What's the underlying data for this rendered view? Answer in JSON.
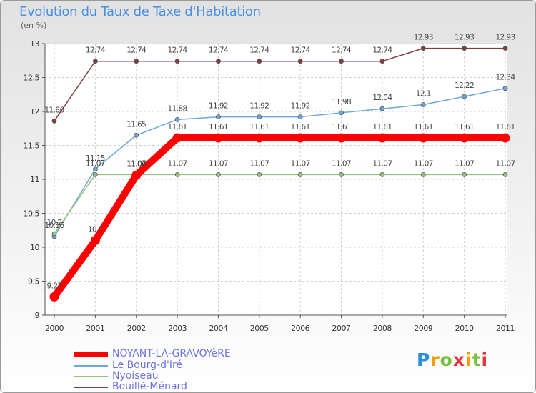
{
  "header": {
    "title": "Evolution du Taux de Taxe d'Habitation",
    "subtitle": "(en %)"
  },
  "logo": {
    "text": "Proxiti",
    "colors": [
      "#2a8fd6",
      "#f2a000",
      "#7ac043",
      "#e8343c"
    ]
  },
  "chart_data": {
    "type": "line",
    "title": "Evolution du Taux de Taxe d'Habitation",
    "ylabel": "(en %)",
    "xlabel": "",
    "x": [
      "2000",
      "2001",
      "2002",
      "2003",
      "2004",
      "2005",
      "2006",
      "2007",
      "2008",
      "2009",
      "2010",
      "2011"
    ],
    "ylim": [
      9,
      13
    ],
    "yticks": [
      "9",
      "9.5",
      "10",
      "10.5",
      "11",
      "11.5",
      "12",
      "12.5",
      "13"
    ],
    "grid": true,
    "legend_position": "bottom-left",
    "series": [
      {
        "name": "NOYANT-LA-GRAVOYèRE",
        "color": "#ff0000",
        "emphasis": true,
        "values": [
          9.27,
          10.1,
          11.06,
          11.61,
          11.61,
          11.61,
          11.61,
          11.61,
          11.61,
          11.61,
          11.61,
          11.61
        ],
        "labels": [
          "9.27",
          "10.1",
          "11.06",
          "11.61",
          "11.61",
          "11.61",
          "11.61",
          "11.61",
          "11.61",
          "11.61",
          "11.61",
          "11.61"
        ]
      },
      {
        "name": "Le Bourg-d'Iré",
        "color": "#6fa8dc",
        "values": [
          10.16,
          11.15,
          11.65,
          11.88,
          11.92,
          11.92,
          11.92,
          11.98,
          12.04,
          12.1,
          12.22,
          12.34
        ],
        "labels": [
          "10.16",
          "11.15",
          "11.65",
          "11.88",
          "11.92",
          "11.92",
          "11.92",
          "11.98",
          "12.04",
          "12.1",
          "12.22",
          "12.34"
        ]
      },
      {
        "name": "Nyoiseau",
        "color": "#93c47d",
        "values": [
          10.2,
          11.07,
          11.07,
          11.07,
          11.07,
          11.07,
          11.07,
          11.07,
          11.07,
          11.07,
          11.07,
          11.07
        ],
        "labels": [
          "10.2",
          "11.07",
          "11.07",
          "11.07",
          "11.07",
          "11.07",
          "11.07",
          "11.07",
          "11.07",
          "11.07",
          "11.07",
          "11.07"
        ]
      },
      {
        "name": "Bouillé-Ménard",
        "color": "#7f3f3f",
        "values": [
          11.86,
          12.74,
          12.74,
          12.74,
          12.74,
          12.74,
          12.74,
          12.74,
          12.74,
          12.93,
          12.93,
          12.93
        ],
        "labels": [
          "11.86",
          "12.74",
          "12.74",
          "12.74",
          "12.74",
          "12.74",
          "12.74",
          "12.74",
          "12.74",
          "12.93",
          "12.93",
          "12.93"
        ]
      }
    ]
  }
}
